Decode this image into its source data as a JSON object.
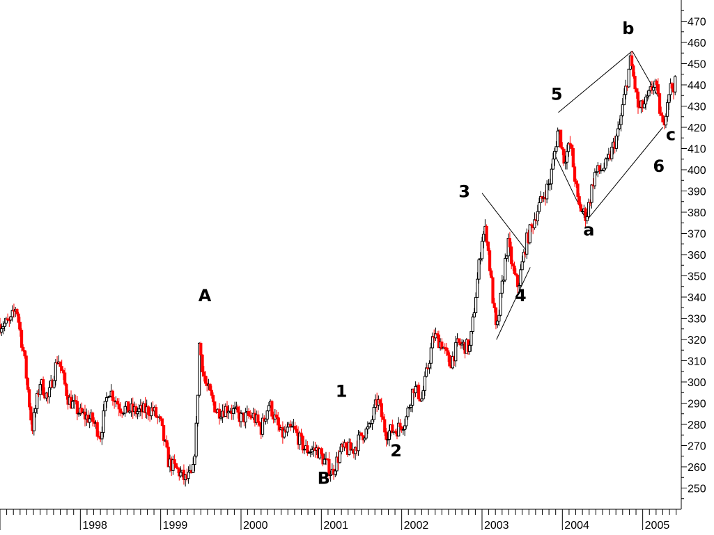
{
  "chart_data": {
    "type": "candlestick",
    "title": "",
    "xlabel": "",
    "ylabel": "",
    "ylim": [
      240,
      480
    ],
    "xlim": [
      1997.0,
      2005.48
    ],
    "yticks": [
      250,
      260,
      270,
      280,
      290,
      300,
      310,
      320,
      330,
      340,
      350,
      360,
      370,
      380,
      390,
      400,
      410,
      420,
      430,
      440,
      450,
      460,
      470
    ],
    "x_tick_labels": [
      "1998",
      "1999",
      "2000",
      "2001",
      "2002",
      "2003",
      "2004",
      "2005"
    ],
    "grid": false,
    "colors": {
      "up": "#000000",
      "down": "#ff0000"
    },
    "price_path": [
      [
        1997.0,
        327
      ],
      [
        1997.13,
        328
      ],
      [
        1997.2,
        336
      ],
      [
        1997.3,
        312
      ],
      [
        1997.4,
        278
      ],
      [
        1997.5,
        300
      ],
      [
        1997.6,
        292
      ],
      [
        1997.72,
        312
      ],
      [
        1997.85,
        292
      ],
      [
        1998.0,
        285
      ],
      [
        1998.15,
        282
      ],
      [
        1998.25,
        275
      ],
      [
        1998.35,
        297
      ],
      [
        1998.5,
        288
      ],
      [
        1998.7,
        286
      ],
      [
        1998.9,
        287
      ],
      [
        1999.0,
        280
      ],
      [
        1999.1,
        262
      ],
      [
        1999.22,
        258
      ],
      [
        1999.3,
        254
      ],
      [
        1999.4,
        256
      ],
      [
        1999.45,
        282
      ],
      [
        1999.48,
        318
      ],
      [
        1999.55,
        300
      ],
      [
        1999.7,
        286
      ],
      [
        1999.85,
        288
      ],
      [
        2000.0,
        283
      ],
      [
        2000.15,
        284
      ],
      [
        2000.25,
        278
      ],
      [
        2000.35,
        290
      ],
      [
        2000.5,
        275
      ],
      [
        2000.65,
        278
      ],
      [
        2000.8,
        268
      ],
      [
        2000.95,
        268
      ],
      [
        2001.05,
        262
      ],
      [
        2001.13,
        257
      ],
      [
        2001.25,
        268
      ],
      [
        2001.4,
        268
      ],
      [
        2001.5,
        275
      ],
      [
        2001.6,
        278
      ],
      [
        2001.7,
        292
      ],
      [
        2001.8,
        276
      ],
      [
        2001.95,
        278
      ],
      [
        2002.05,
        282
      ],
      [
        2002.15,
        298
      ],
      [
        2002.25,
        292
      ],
      [
        2002.4,
        322
      ],
      [
        2002.5,
        318
      ],
      [
        2002.6,
        308
      ],
      [
        2002.7,
        318
      ],
      [
        2002.85,
        316
      ],
      [
        2003.0,
        368
      ],
      [
        2003.05,
        372
      ],
      [
        2003.12,
        345
      ],
      [
        2003.18,
        322
      ],
      [
        2003.25,
        345
      ],
      [
        2003.32,
        366
      ],
      [
        2003.4,
        350
      ],
      [
        2003.45,
        345
      ],
      [
        2003.55,
        366
      ],
      [
        2003.7,
        382
      ],
      [
        2003.85,
        395
      ],
      [
        2003.95,
        420
      ],
      [
        2004.02,
        405
      ],
      [
        2004.1,
        412
      ],
      [
        2004.2,
        383
      ],
      [
        2004.3,
        378
      ],
      [
        2004.4,
        398
      ],
      [
        2004.55,
        402
      ],
      [
        2004.7,
        418
      ],
      [
        2004.85,
        452
      ],
      [
        2004.95,
        428
      ],
      [
        2005.05,
        432
      ],
      [
        2005.15,
        442
      ],
      [
        2005.25,
        420
      ],
      [
        2005.33,
        438
      ],
      [
        2005.42,
        441
      ]
    ],
    "candles_per_year": 52,
    "channel_lines": [
      {
        "from": [
          2003.0,
          389
        ],
        "to": [
          2003.55,
          362
        ]
      },
      {
        "from": [
          2003.18,
          320
        ],
        "to": [
          2003.6,
          354
        ]
      },
      {
        "from": [
          2003.95,
          427
        ],
        "to": [
          2004.87,
          456
        ]
      },
      {
        "from": [
          2004.87,
          456
        ],
        "to": [
          2005.2,
          434
        ]
      },
      {
        "from": [
          2003.92,
          406
        ],
        "to": [
          2004.3,
          376
        ]
      },
      {
        "from": [
          2004.3,
          376
        ],
        "to": [
          2005.25,
          420
        ]
      }
    ],
    "annotations": [
      {
        "text": "A",
        "x": 1999.55,
        "y": 338
      },
      {
        "text": "B",
        "x": 2001.03,
        "y": 252
      },
      {
        "text": "1",
        "x": 2001.25,
        "y": 293
      },
      {
        "text": "2",
        "x": 2001.93,
        "y": 265
      },
      {
        "text": "3",
        "x": 2002.78,
        "y": 387
      },
      {
        "text": "4",
        "x": 2003.48,
        "y": 338
      },
      {
        "text": "5",
        "x": 2003.93,
        "y": 433
      },
      {
        "text": "a",
        "x": 2004.33,
        "y": 369
      },
      {
        "text": "b",
        "x": 2004.82,
        "y": 464
      },
      {
        "text": "c",
        "x": 2005.35,
        "y": 414
      },
      {
        "text": "6",
        "x": 2005.2,
        "y": 399
      }
    ]
  }
}
